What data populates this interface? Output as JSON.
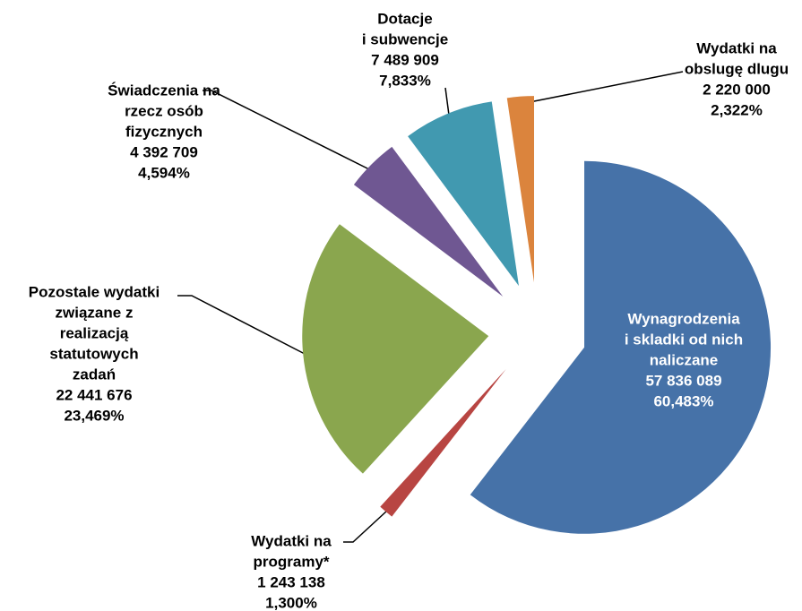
{
  "chart_data": {
    "type": "pie",
    "categories": [
      [
        "Wynagrodzenia",
        "i skladki od nich",
        "naliczane"
      ],
      [
        "Wydatki na",
        "programy*"
      ],
      [
        "Pozostale wydatki",
        "związane z",
        "realizacją",
        "statutowych",
        "zadań"
      ],
      [
        "Świadczenia na",
        "rzecz osób",
        "fizycznych"
      ],
      [
        "Dotacje",
        "i subwencje"
      ],
      [
        "Wydatki na",
        "obslugę dlugu"
      ]
    ],
    "values": [
      57836089,
      1243138,
      22441676,
      4392709,
      7489909,
      2220000
    ],
    "value_labels": [
      "57 836 089",
      "1 243 138",
      "22 441 676",
      "4 392 709",
      "7 489 909",
      "2 220 000"
    ],
    "percentages": [
      60.483,
      1.3,
      23.469,
      4.594,
      7.833,
      2.322
    ],
    "percentage_labels": [
      "60,483%",
      "1,300%",
      "23,469%",
      "4,594%",
      "7,833%",
      "2,322%"
    ],
    "colors": [
      "#4672a8",
      "#b84542",
      "#8aa64e",
      "#6f5792",
      "#4199b0",
      "#db843d"
    ]
  }
}
